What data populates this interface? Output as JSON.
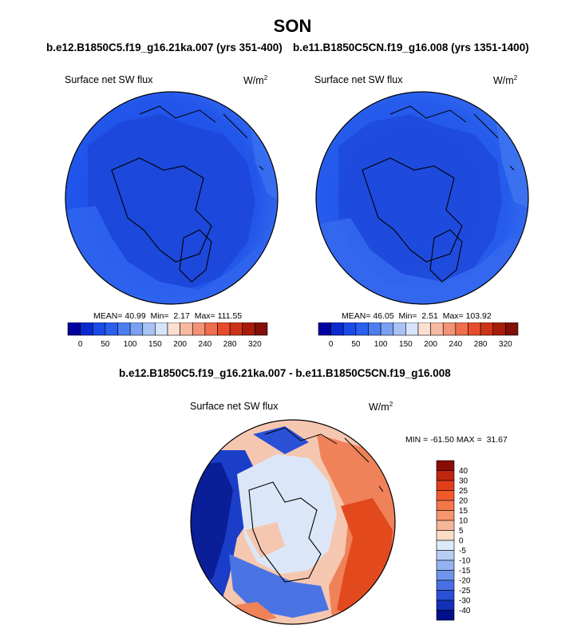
{
  "header": {
    "title": "SON",
    "subtitle_left": "b.e12.B1850C5.f19_g16.21ka.007 (yrs 351-400)",
    "subtitle_right": "b.e11.B1850C5CN.f19_g16.008 (yrs 1351-1400)",
    "diff_title": "b.e12.B1850C5.f19_g16.21ka.007 - b.e11.B1850C5CN.f19_g16.008"
  },
  "chart_data": [
    {
      "type": "heatmap",
      "projection": "north polar stereographic",
      "variable": "Surface net SW flux",
      "units_base": "W/m",
      "units_exp": "2",
      "stats": {
        "mean_label": "MEAN=",
        "mean": "40.99",
        "min_label": "Min=",
        "min": "2.17",
        "max_label": "Max=",
        "max": "111.55"
      },
      "colorbar_labels": [
        "0",
        "50",
        "100",
        "150",
        "200",
        "240",
        "280",
        "320"
      ],
      "colorbar_colors": [
        "#0000a0",
        "#0a2ad0",
        "#1a4ae8",
        "#2a60f0",
        "#4c7ef2",
        "#7aa0f4",
        "#a8c2f6",
        "#d6e4fa",
        "#fbe0d2",
        "#f7baa0",
        "#f39276",
        "#ef6e4e",
        "#e84c2c",
        "#cc3418",
        "#a81c0c",
        "#801008"
      ]
    },
    {
      "type": "heatmap",
      "projection": "north polar stereographic",
      "variable": "Surface net SW flux",
      "units_base": "W/m",
      "units_exp": "2",
      "stats": {
        "mean_label": "MEAN=",
        "mean": "46.05",
        "min_label": "Min=",
        "min": "2.51",
        "max_label": "Max=",
        "max": "103.92"
      },
      "colorbar_labels": [
        "0",
        "50",
        "100",
        "150",
        "200",
        "240",
        "280",
        "320"
      ],
      "colorbar_colors": [
        "#0000a0",
        "#0a2ad0",
        "#1a4ae8",
        "#2a60f0",
        "#4c7ef2",
        "#7aa0f4",
        "#a8c2f6",
        "#d6e4fa",
        "#fbe0d2",
        "#f7baa0",
        "#f39276",
        "#ef6e4e",
        "#e84c2c",
        "#cc3418",
        "#a81c0c",
        "#801008"
      ]
    },
    {
      "type": "heatmap",
      "projection": "north polar stereographic",
      "variable": "Surface net SW flux",
      "units_base": "W/m",
      "units_exp": "2",
      "stats": {
        "min_label": "MIN =",
        "min": "-61.50",
        "max_label": "MAX =",
        "max": "31.67"
      },
      "colorbar_labels": [
        "40",
        "30",
        "25",
        "20",
        "15",
        "10",
        "5",
        "0",
        "-5",
        "-10",
        "-15",
        "-20",
        "-25",
        "-30",
        "-40"
      ],
      "colorbar_colors": [
        "#8a0c06",
        "#c0260e",
        "#e23e1a",
        "#f25a2c",
        "#f4774a",
        "#f5966e",
        "#f6b596",
        "#fbdcc6",
        "#dde9f8",
        "#b6cdf4",
        "#92b2f0",
        "#6e94ec",
        "#4870e6",
        "#2a50d8",
        "#1230b8",
        "#00108a"
      ]
    }
  ]
}
